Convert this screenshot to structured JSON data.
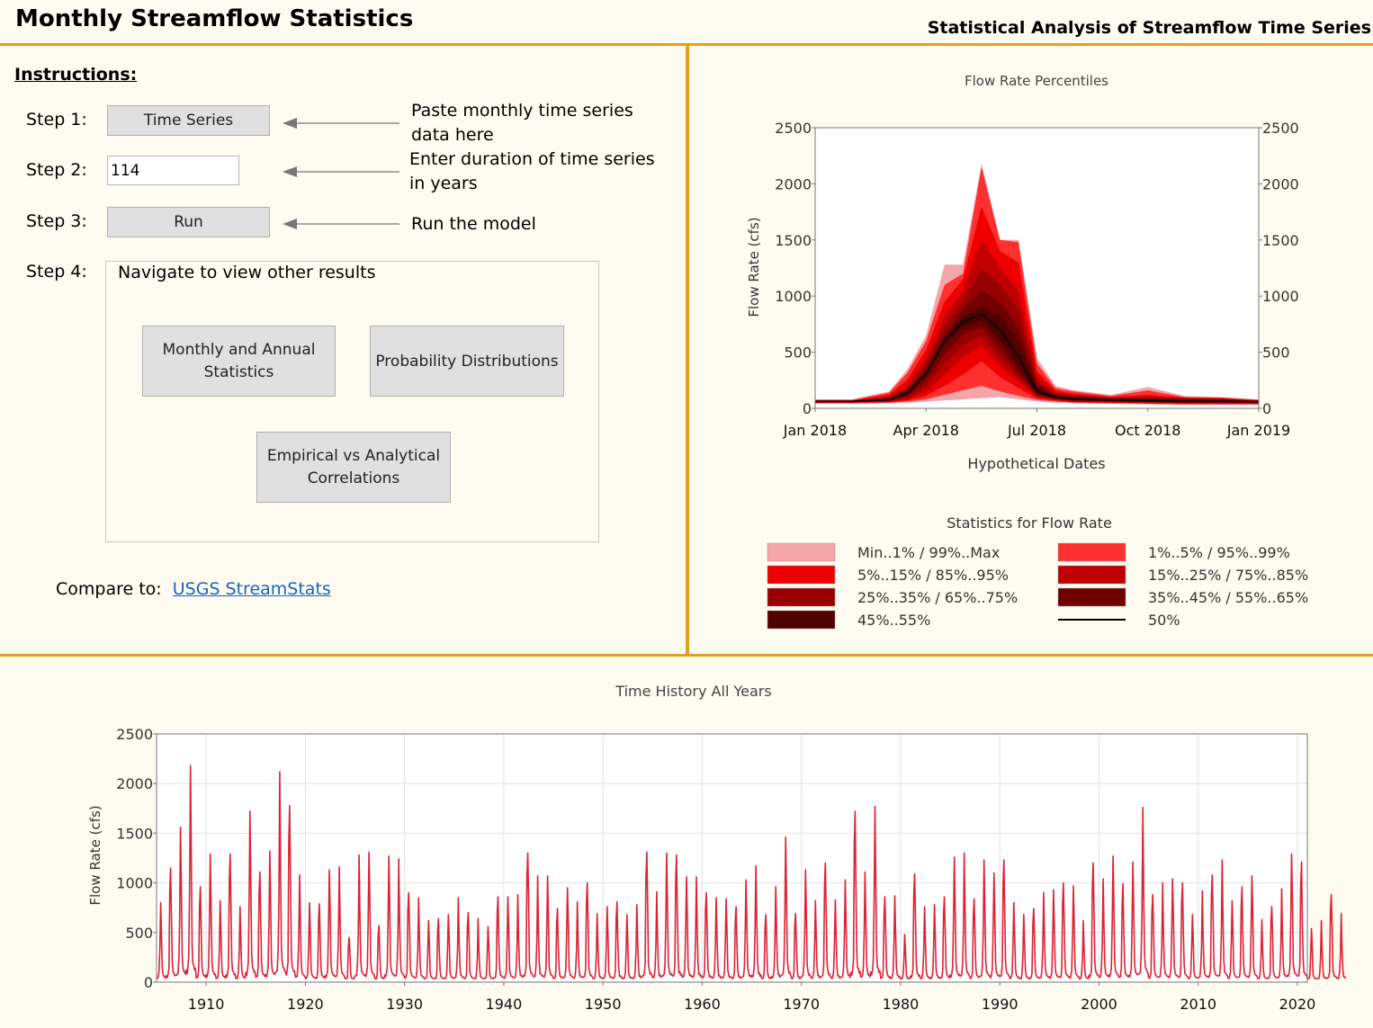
{
  "header": {
    "title": "Monthly Streamflow Statistics",
    "subtitle": "Statistical Analysis of Streamflow Time Series"
  },
  "instructions": {
    "heading": "Instructions:",
    "step1_label": "Step 1:",
    "step1_button": "Time Series",
    "step1_note_line1": "Paste monthly time series",
    "step1_note_line2": "data here",
    "step2_label": "Step 2:",
    "step2_value": "114",
    "step2_note_line1": "Enter duration of time series",
    "step2_note_line2": "in years",
    "step3_label": "Step 3:",
    "step3_button": "Run",
    "step3_note": "Run the model",
    "step4_label": "Step 4:",
    "nav_title": "Navigate to view other results",
    "nav_btn1_line1": "Monthly and Annual",
    "nav_btn1_line2": "Statistics",
    "nav_btn2": "Probability Distributions",
    "nav_btn3_line1": "Empirical vs Analytical",
    "nav_btn3_line2": "Correlations",
    "compare_label": "Compare to:",
    "compare_link": "USGS StreamStats"
  },
  "colors": {
    "accent": "#e0a020",
    "band_min_max": "#f4a6aa",
    "band_1_5": "#ff3030",
    "band_5_15": "#ee0000",
    "band_15_25": "#c00000",
    "band_25_35": "#990000",
    "band_35_45": "#700000",
    "band_45_55": "#500000",
    "median": "#000000",
    "history_line": "#dd2233"
  },
  "chart_data": [
    {
      "type": "area",
      "title": "Flow Rate Percentiles",
      "xlabel": "Hypothetical Dates",
      "ylabel": "Flow Rate (cfs)",
      "ylim": [
        0,
        2500
      ],
      "yticks": [
        "0",
        "500",
        "1000",
        "1500",
        "2000",
        "2500"
      ],
      "xticks": [
        "Jan 2018",
        "Apr 2018",
        "Jul 2018",
        "Oct 2018",
        "Jan 2019"
      ],
      "x_months": [
        0,
        1,
        2,
        2.5,
        3,
        3.5,
        4,
        4.5,
        5,
        5.5,
        6,
        6.5,
        7,
        8,
        9,
        10,
        11,
        12
      ],
      "bands": [
        {
          "key": "min_max",
          "lower": [
            40,
            40,
            45,
            50,
            60,
            70,
            80,
            90,
            100,
            80,
            60,
            50,
            45,
            40,
            35,
            30,
            30,
            30
          ],
          "upper": [
            80,
            80,
            150,
            350,
            650,
            1280,
            1280,
            2180,
            1500,
            1500,
            450,
            200,
            160,
            120,
            190,
            110,
            100,
            80
          ]
        },
        {
          "key": "p1_5",
          "lower": [
            45,
            45,
            50,
            60,
            80,
            120,
            160,
            200,
            150,
            110,
            75,
            60,
            50,
            45,
            40,
            35,
            35,
            35
          ],
          "upper": [
            75,
            75,
            140,
            320,
            600,
            1100,
            1200,
            2150,
            1500,
            1480,
            400,
            180,
            150,
            110,
            160,
            100,
            95,
            75
          ]
        },
        {
          "key": "p5_15",
          "lower": [
            50,
            50,
            55,
            70,
            110,
            200,
            300,
            420,
            280,
            180,
            90,
            70,
            55,
            50,
            45,
            40,
            40,
            40
          ],
          "upper": [
            70,
            70,
            120,
            260,
            520,
            950,
            1150,
            1800,
            1400,
            1300,
            330,
            160,
            130,
            100,
            120,
            95,
            90,
            70
          ]
        },
        {
          "key": "p15_25",
          "lower": [
            55,
            55,
            60,
            80,
            150,
            300,
            450,
            560,
            380,
            240,
            100,
            75,
            60,
            55,
            50,
            45,
            45,
            45
          ],
          "upper": [
            68,
            68,
            105,
            210,
            450,
            820,
            1050,
            1500,
            1250,
            1050,
            280,
            140,
            115,
            95,
            100,
            90,
            85,
            68
          ]
        },
        {
          "key": "p25_35",
          "lower": [
            58,
            58,
            65,
            95,
            200,
            400,
            560,
            650,
            450,
            280,
            110,
            80,
            65,
            60,
            55,
            50,
            50,
            50
          ],
          "upper": [
            66,
            66,
            95,
            180,
            400,
            740,
            960,
            1250,
            1100,
            880,
            240,
            130,
            110,
            90,
            95,
            85,
            80,
            66
          ]
        },
        {
          "key": "p35_45",
          "lower": [
            60,
            60,
            68,
            110,
            250,
            480,
            650,
            720,
            530,
            320,
            120,
            85,
            70,
            62,
            58,
            52,
            52,
            52
          ],
          "upper": [
            64,
            64,
            88,
            160,
            350,
            660,
            880,
            1050,
            950,
            720,
            210,
            120,
            100,
            86,
            90,
            80,
            76,
            64
          ]
        },
        {
          "key": "p45_55",
          "lower": [
            62,
            62,
            72,
            125,
            300,
            560,
            720,
            780,
            600,
            360,
            130,
            90,
            75,
            65,
            60,
            55,
            55,
            55
          ],
          "upper": [
            63,
            63,
            82,
            145,
            320,
            620,
            820,
            900,
            830,
            600,
            180,
            110,
            92,
            82,
            85,
            76,
            72,
            62
          ]
        }
      ],
      "median": [
        62,
        62,
        77,
        135,
        310,
        600,
        770,
        840,
        700,
        460,
        150,
        100,
        85,
        75,
        70,
        65,
        62,
        60
      ]
    },
    {
      "type": "line",
      "title": "Time History All Years",
      "ylabel": "Flow Rate (cfs)",
      "xlim": [
        1905,
        2021
      ],
      "ylim": [
        0,
        2500
      ],
      "yticks": [
        "0",
        "500",
        "1000",
        "1500",
        "2000",
        "2500"
      ],
      "xticks": [
        "1910",
        "1920",
        "1930",
        "1940",
        "1950",
        "1960",
        "1970",
        "1980",
        "1990",
        "2000",
        "2010",
        "2020"
      ],
      "annual_peaks": [
        800,
        1150,
        1560,
        2180,
        960,
        1290,
        820,
        1290,
        760,
        1720,
        1110,
        1320,
        2120,
        1780,
        1080,
        800,
        790,
        1130,
        1160,
        450,
        1280,
        1310,
        570,
        1270,
        1240,
        900,
        850,
        620,
        640,
        680,
        850,
        700,
        640,
        560,
        860,
        860,
        880,
        1300,
        1070,
        1070,
        740,
        950,
        810,
        1000,
        690,
        760,
        810,
        680,
        780,
        1310,
        910,
        1300,
        1280,
        1060,
        1060,
        900,
        850,
        840,
        760,
        1030,
        1170,
        680,
        960,
        1460,
        690,
        1130,
        820,
        1200,
        830,
        1030,
        1720,
        1110,
        1770,
        860,
        870,
        480,
        1090,
        760,
        780,
        860,
        1260,
        1300,
        840,
        1230,
        1100,
        1230,
        800,
        680,
        740,
        900,
        930,
        1000,
        970,
        620,
        1200,
        1040,
        1270,
        990,
        1210,
        1760,
        880,
        1000,
        1040,
        1000,
        680,
        920,
        1080,
        1230,
        820,
        960,
        1070,
        630,
        760,
        940,
        1290,
        1210,
        540,
        620,
        880,
        690
      ]
    }
  ],
  "legend": {
    "title": "Statistics for Flow Rate",
    "items": [
      {
        "label": "Min..1% / 99%..Max",
        "swatch": "#f4a6aa"
      },
      {
        "label": "1%..5% / 95%..99%",
        "swatch": "#ff3030"
      },
      {
        "label": "5%..15% / 85%..95%",
        "swatch": "#ee0000"
      },
      {
        "label": "15%..25% / 75%..85%",
        "swatch": "#c00000"
      },
      {
        "label": "25%..35% / 65%..75%",
        "swatch": "#990000"
      },
      {
        "label": "35%..45% / 55%..65%",
        "swatch": "#700000"
      },
      {
        "label": "45%..55%",
        "swatch": "#500000"
      },
      {
        "label": "50%",
        "swatch": "line"
      }
    ]
  }
}
